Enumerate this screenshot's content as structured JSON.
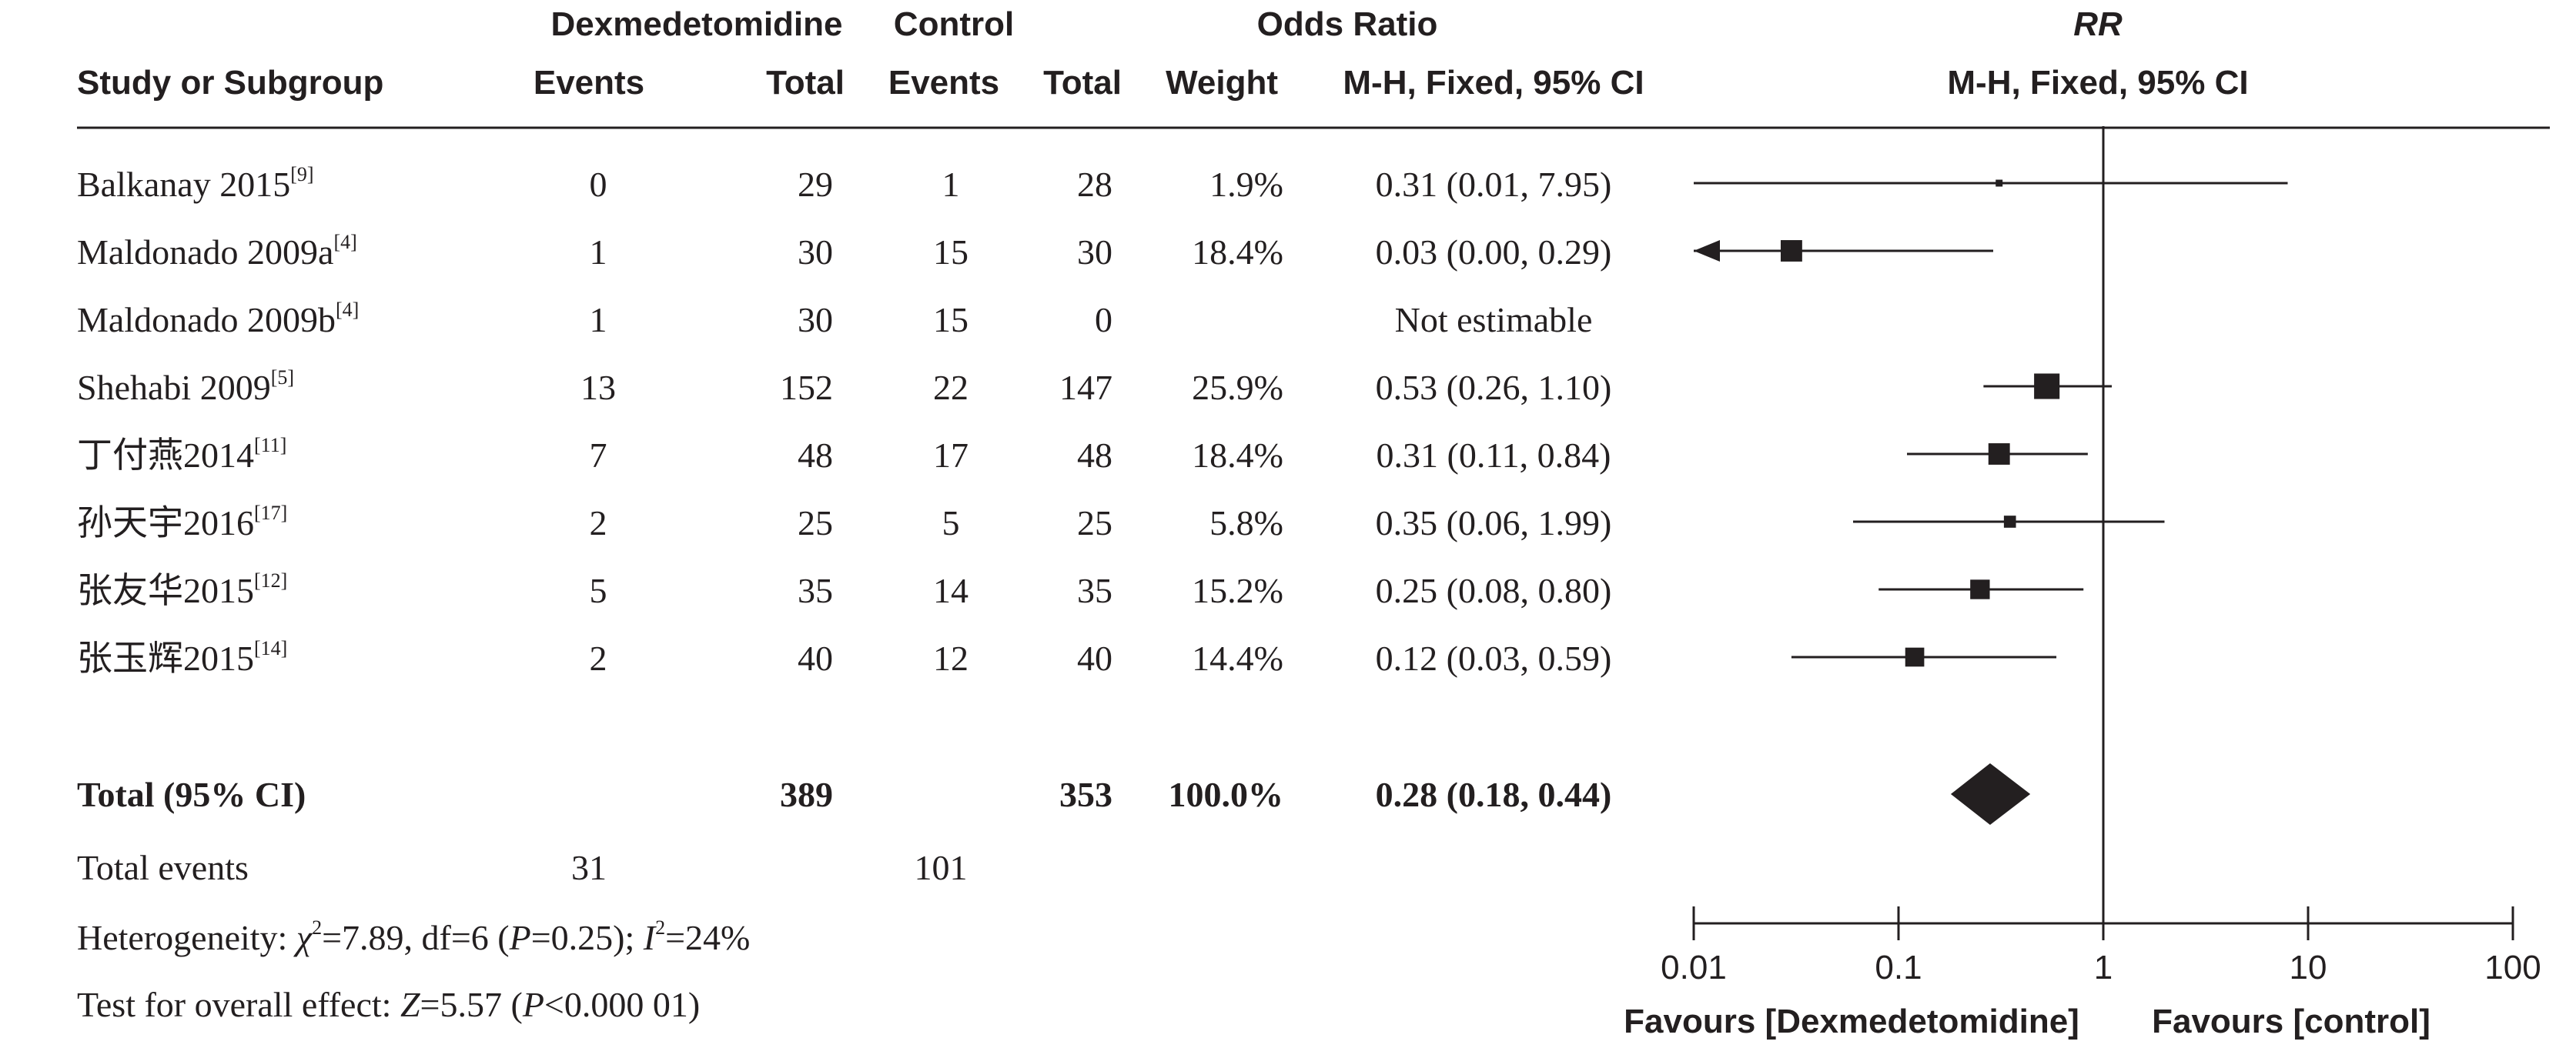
{
  "chart_data": {
    "type": "forest",
    "header": {
      "group1": "Dexmedetomidine",
      "group2": "Control",
      "odds_ratio": "Odds Ratio",
      "rr": "RR",
      "study_col": "Study or Subgroup",
      "events": "Events",
      "total": "Total",
      "weight": "Weight",
      "method": "M-H, Fixed, 95% CI"
    },
    "studies": [
      {
        "name": "Balkanay 2015",
        "ref": "[9]",
        "e1": "0",
        "t1": "29",
        "e2": "1",
        "t2": "28",
        "weight": "1.9%",
        "ci_text": "0.31 (0.01, 7.95)",
        "or": 0.31,
        "lo": 0.01,
        "hi": 7.95,
        "w": 1.9
      },
      {
        "name": "Maldonado 2009a",
        "ref": "[4]",
        "e1": "1",
        "t1": "30",
        "e2": "15",
        "t2": "30",
        "weight": "18.4%",
        "ci_text": "0.03 (0.00, 0.29)",
        "or": 0.03,
        "lo": 0.0,
        "hi": 0.29,
        "w": 18.4
      },
      {
        "name": "Maldonado 2009b",
        "ref": "[4]",
        "e1": "1",
        "t1": "30",
        "e2": "15",
        "t2": "0",
        "weight": "",
        "ci_text": "Not estimable",
        "or": null,
        "lo": null,
        "hi": null,
        "w": 0
      },
      {
        "name": "Shehabi 2009",
        "ref": "[5]",
        "e1": "13",
        "t1": "152",
        "e2": "22",
        "t2": "147",
        "weight": "25.9%",
        "ci_text": "0.53 (0.26, 1.10)",
        "or": 0.53,
        "lo": 0.26,
        "hi": 1.1,
        "w": 25.9
      },
      {
        "name": "丁付燕2014",
        "ref": "[11]",
        "e1": "7",
        "t1": "48",
        "e2": "17",
        "t2": "48",
        "weight": "18.4%",
        "ci_text": "0.31 (0.11, 0.84)",
        "or": 0.31,
        "lo": 0.11,
        "hi": 0.84,
        "w": 18.4
      },
      {
        "name": "孙天宇2016",
        "ref": "[17]",
        "e1": "2",
        "t1": "25",
        "e2": "5",
        "t2": "25",
        "weight": "5.8%",
        "ci_text": "0.35 (0.06, 1.99)",
        "or": 0.35,
        "lo": 0.06,
        "hi": 1.99,
        "w": 5.8
      },
      {
        "name": "张友华2015",
        "ref": "[12]",
        "e1": "5",
        "t1": "35",
        "e2": "14",
        "t2": "35",
        "weight": "15.2%",
        "ci_text": "0.25 (0.08, 0.80)",
        "or": 0.25,
        "lo": 0.08,
        "hi": 0.8,
        "w": 15.2
      },
      {
        "name": "张玉辉2015",
        "ref": "[14]",
        "e1": "2",
        "t1": "40",
        "e2": "12",
        "t2": "40",
        "weight": "14.4%",
        "ci_text": "0.12 (0.03, 0.59)",
        "or": 0.12,
        "lo": 0.03,
        "hi": 0.59,
        "w": 14.4
      }
    ],
    "total": {
      "label": "Total (95% CI)",
      "t1": "389",
      "t2": "353",
      "weight": "100.0%",
      "ci_text": "0.28 (0.18, 0.44)",
      "or": 0.28,
      "lo": 0.18,
      "hi": 0.44
    },
    "total_events": {
      "label": "Total events",
      "e1": "31",
      "e2": "101"
    },
    "heterogeneity": {
      "prefix": "Heterogeneity: ",
      "chi": "χ",
      "chi_sup": "2",
      "chi_rest": "=7.89, df=6 (",
      "p": "P",
      "p_rest": "=0.25); ",
      "i": "I",
      "i_sup": "2",
      "i_rest": "=24%"
    },
    "overall": {
      "prefix": "Test for overall effect: ",
      "z": "Z",
      "z_rest": "=5.57 (",
      "p": "P",
      "p_rest": "<0.000 01)"
    },
    "x_axis": {
      "scale": "log",
      "ticks": [
        0.01,
        0.1,
        1,
        10,
        100
      ],
      "tick_labels": [
        "0.01",
        "0.1",
        "1",
        "10",
        "100"
      ],
      "range": [
        0.01,
        100
      ]
    },
    "favours_left": "Favours [Dexmedetomidine]",
    "favours_right": "Favours [control]"
  }
}
